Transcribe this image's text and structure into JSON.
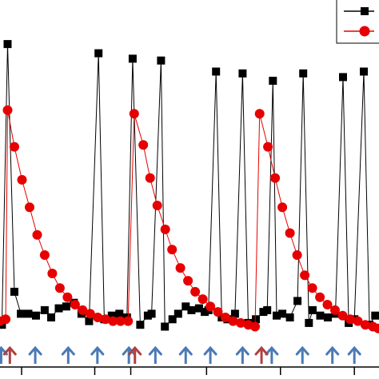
{
  "chart_data": {
    "type": "line",
    "title": "",
    "xlabel": "",
    "ylabel": "",
    "xlim": [
      0,
      100
    ],
    "ylim": [
      0,
      100
    ],
    "grid": false,
    "legend": {
      "placement": "top-right",
      "cropped": true
    },
    "series": [
      {
        "marker": "square",
        "color": "#000000",
        "points": [
          [
            0.5,
            11.5
          ],
          [
            2.0,
            88.0
          ],
          [
            3.8,
            20.5
          ],
          [
            5.5,
            14.5
          ],
          [
            7.5,
            14.5
          ],
          [
            9.5,
            14.0
          ],
          [
            11.8,
            15.5
          ],
          [
            13.5,
            13.5
          ],
          [
            15.5,
            16.0
          ],
          [
            17.5,
            16.5
          ],
          [
            19.5,
            17.5
          ],
          [
            21.5,
            14.5
          ],
          [
            23.5,
            12.5
          ],
          [
            26.0,
            85.5
          ],
          [
            27.5,
            13.0
          ],
          [
            29.5,
            14.0
          ],
          [
            31.5,
            14.5
          ],
          [
            33.5,
            13.5
          ],
          [
            35.0,
            84.0
          ],
          [
            37.0,
            11.5
          ],
          [
            39.0,
            14.0
          ],
          [
            40.0,
            14.5
          ],
          [
            42.5,
            83.5
          ],
          [
            43.5,
            11.0
          ],
          [
            45.5,
            13.0
          ],
          [
            47.0,
            14.5
          ],
          [
            49.0,
            16.5
          ],
          [
            50.5,
            15.5
          ],
          [
            52.5,
            16.0
          ],
          [
            54.0,
            15.0
          ],
          [
            55.0,
            15.5
          ],
          [
            57.0,
            80.5
          ],
          [
            58.5,
            13.5
          ],
          [
            60.0,
            13.0
          ],
          [
            62.0,
            14.5
          ],
          [
            64.0,
            80.0
          ],
          [
            65.5,
            12.0
          ],
          [
            67.5,
            13.0
          ],
          [
            69.5,
            15.0
          ],
          [
            70.5,
            15.5
          ],
          [
            72.0,
            78.0
          ],
          [
            73.0,
            14.0
          ],
          [
            74.5,
            14.5
          ],
          [
            76.5,
            13.5
          ],
          [
            78.5,
            18.0
          ],
          [
            80.0,
            80.0
          ],
          [
            81.5,
            12.0
          ],
          [
            82.5,
            15.5
          ],
          [
            84.5,
            14.0
          ],
          [
            86.5,
            13.5
          ],
          [
            88.5,
            14.5
          ],
          [
            90.5,
            79.0
          ],
          [
            92.0,
            12.0
          ],
          [
            93.5,
            13.0
          ],
          [
            96.0,
            80.5
          ],
          [
            97.5,
            11.5
          ],
          [
            99.0,
            14.0
          ]
        ]
      },
      {
        "marker": "circle",
        "color": "#e60000",
        "points": [
          [
            0.0,
            12.5
          ],
          [
            1.5,
            13.0
          ],
          [
            2.0,
            70.0
          ],
          [
            3.8,
            60.0
          ],
          [
            5.8,
            51.0
          ],
          [
            7.8,
            43.5
          ],
          [
            9.8,
            36.0
          ],
          [
            11.8,
            30.5
          ],
          [
            13.8,
            25.5
          ],
          [
            15.8,
            21.5
          ],
          [
            17.8,
            19.0
          ],
          [
            19.8,
            17.0
          ],
          [
            21.8,
            15.5
          ],
          [
            23.8,
            14.5
          ],
          [
            25.8,
            13.5
          ],
          [
            27.8,
            13.0
          ],
          [
            29.8,
            12.5
          ],
          [
            31.8,
            12.5
          ],
          [
            33.8,
            12.5
          ],
          [
            35.4,
            69.0
          ],
          [
            37.8,
            60.5
          ],
          [
            39.6,
            51.5
          ],
          [
            41.5,
            44.0
          ],
          [
            43.6,
            37.5
          ],
          [
            45.4,
            32.0
          ],
          [
            47.6,
            27.0
          ],
          [
            49.6,
            23.5
          ],
          [
            51.5,
            20.5
          ],
          [
            53.5,
            18.5
          ],
          [
            55.5,
            16.5
          ],
          [
            57.5,
            15.0
          ],
          [
            59.5,
            13.5
          ],
          [
            61.5,
            12.5
          ],
          [
            63.5,
            12.0
          ],
          [
            65.5,
            11.5
          ],
          [
            67.3,
            11.0
          ],
          [
            68.5,
            69.0
          ],
          [
            70.7,
            60.0
          ],
          [
            72.6,
            51.5
          ],
          [
            74.5,
            43.5
          ],
          [
            76.5,
            36.5
          ],
          [
            78.4,
            30.5
          ],
          [
            80.4,
            25.0
          ],
          [
            82.4,
            21.5
          ],
          [
            84.4,
            19.0
          ],
          [
            86.4,
            17.0
          ],
          [
            88.4,
            15.5
          ],
          [
            90.4,
            14.0
          ],
          [
            92.4,
            13.0
          ],
          [
            94.4,
            12.5
          ],
          [
            96.4,
            11.5
          ],
          [
            98.4,
            11.0
          ],
          [
            99.8,
            10.5
          ]
        ]
      }
    ],
    "annotations": {
      "arrows_blue": [
        0.3,
        9.3,
        18.0,
        25.7,
        34.0,
        41.0,
        49.0,
        55.5,
        64.0,
        71.7,
        79.8,
        87.7,
        93.5
      ],
      "arrows_red": [
        2.6,
        35.6,
        69.0
      ],
      "blue_color": "#4a7ab5",
      "red_color": "#b04040"
    },
    "x_ticks": [
      5.7,
      25.0,
      34.5,
      54.5,
      74.0,
      93.5
    ]
  }
}
